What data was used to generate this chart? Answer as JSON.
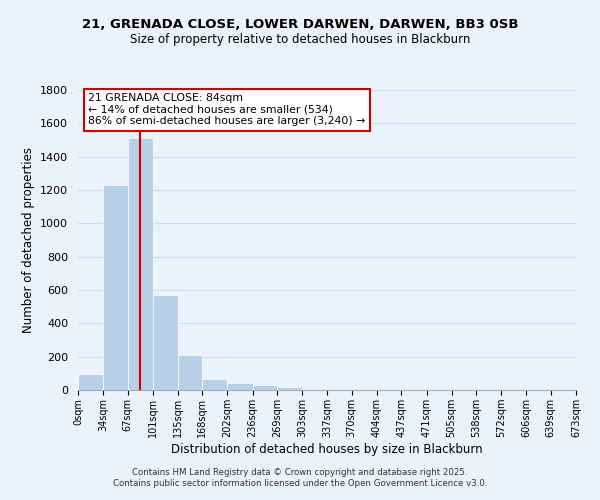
{
  "title": "21, GRENADA CLOSE, LOWER DARWEN, DARWEN, BB3 0SB",
  "subtitle": "Size of property relative to detached houses in Blackburn",
  "xlabel": "Distribution of detached houses by size in Blackburn",
  "ylabel": "Number of detached properties",
  "bar_edges": [
    0,
    34,
    67,
    101,
    135,
    168,
    202,
    236,
    269,
    303,
    337,
    370,
    404,
    437,
    471,
    505,
    538,
    572,
    606,
    639,
    673
  ],
  "bar_heights": [
    95,
    1230,
    1510,
    570,
    210,
    65,
    45,
    30,
    20,
    0,
    0,
    0,
    0,
    0,
    0,
    0,
    0,
    0,
    0,
    0
  ],
  "bar_color": "#b8d0e8",
  "vline_x": 84,
  "vline_color": "#cc0000",
  "annotation_line1": "21 GRENADA CLOSE: 84sqm",
  "annotation_line2": "← 14% of detached houses are smaller (534)",
  "annotation_line3": "86% of semi-detached houses are larger (3,240) →",
  "ylim": [
    0,
    1800
  ],
  "yticks": [
    0,
    200,
    400,
    600,
    800,
    1000,
    1200,
    1400,
    1600,
    1800
  ],
  "xtick_labels": [
    "0sqm",
    "34sqm",
    "67sqm",
    "101sqm",
    "135sqm",
    "168sqm",
    "202sqm",
    "236sqm",
    "269sqm",
    "303sqm",
    "337sqm",
    "370sqm",
    "404sqm",
    "437sqm",
    "471sqm",
    "505sqm",
    "538sqm",
    "572sqm",
    "606sqm",
    "639sqm",
    "673sqm"
  ],
  "grid_color": "#c8ddf0",
  "background_color": "#eaf2fb",
  "footer_line1": "Contains HM Land Registry data © Crown copyright and database right 2025.",
  "footer_line2": "Contains public sector information licensed under the Open Government Licence v3.0."
}
